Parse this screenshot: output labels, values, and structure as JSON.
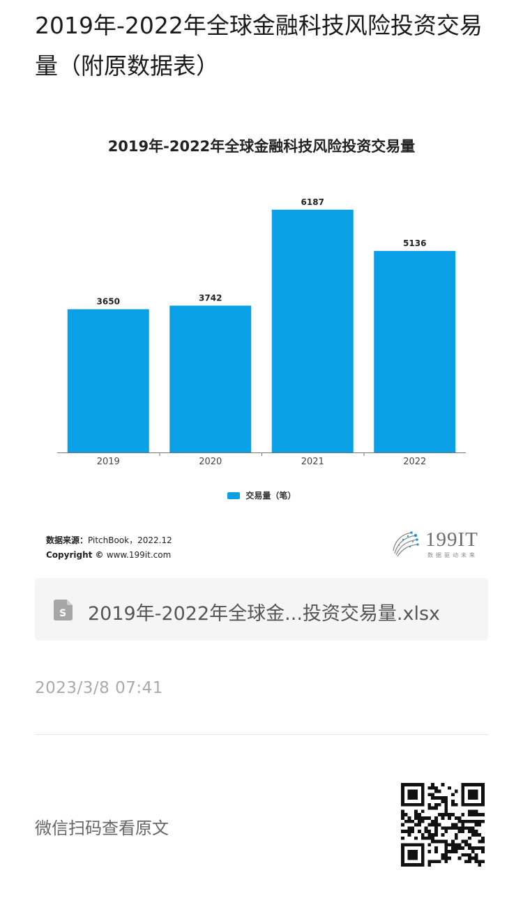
{
  "page": {
    "title": "2019年-2022年全球金融科技风险投资交易量（附原数据表）"
  },
  "chart_data": {
    "type": "bar",
    "title": "2019年-2022年全球金融科技风险投资交易量",
    "categories": [
      "2019",
      "2020",
      "2021",
      "2022"
    ],
    "series": [
      {
        "name": "交易量（笔）",
        "values": [
          3650,
          3742,
          6187,
          5136
        ],
        "color": "#0aa0e6"
      }
    ],
    "data_labels": [
      "3650",
      "3742",
      "6187",
      "5136"
    ],
    "ylim": [
      0,
      7000
    ],
    "grid": false,
    "legend_position": "bottom"
  },
  "source": {
    "label": "数据来源：",
    "value": "PitchBook，2022.12",
    "copyright_label": "Copyright © ",
    "copyright_value": "www.199it.com"
  },
  "logo": {
    "brand": "199IT",
    "slogan": "数据驱动未来"
  },
  "attachment": {
    "icon": "spreadsheet-file-icon",
    "icon_letter": "S",
    "file_name": "2019年-2022年全球金...投资交易量.xlsx"
  },
  "meta": {
    "timestamp": "2023/3/8 07:41"
  },
  "qr": {
    "label": "微信扫码查看原文",
    "icon": "qr-code-icon"
  }
}
